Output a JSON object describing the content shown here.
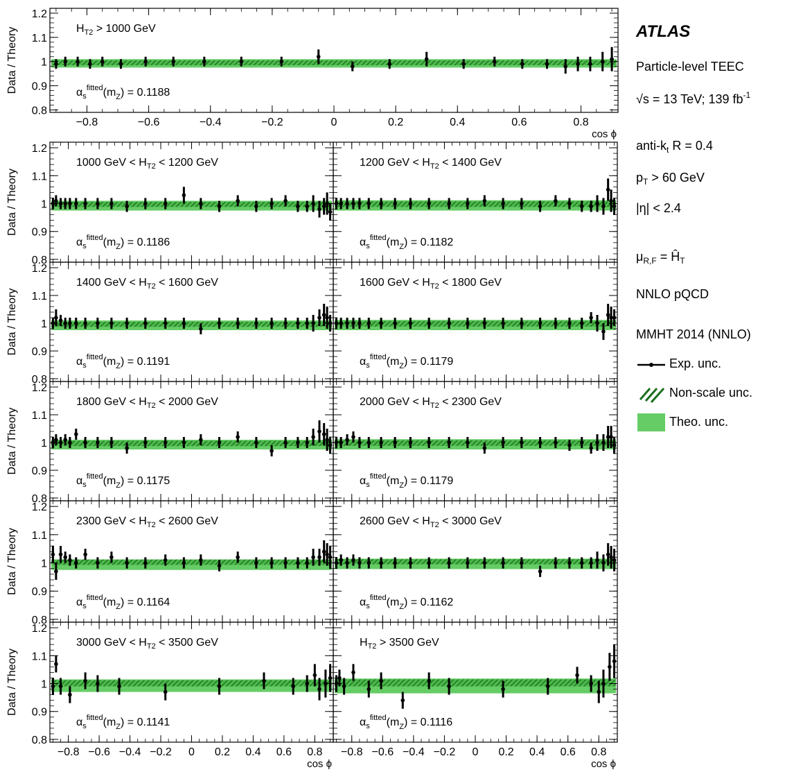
{
  "figure": {
    "experiment": "ATLAS",
    "lines": {
      "level": "Particle-level TEEC",
      "energy_prefix": "√s = 13 TeV; 139 fb",
      "energy_sup": "-1",
      "jet_algo_prefix": "anti-k",
      "jet_algo_sub": "t",
      "jet_algo_suffix": " R = 0.4",
      "pt_prefix": "p",
      "pt_sub": "T",
      "pt_suffix": " > 60 GeV",
      "eta": "|η| < 2.4",
      "scale_prefix": "μ",
      "scale_sub": "R,F",
      "scale_eq": " = ",
      "scale_var": "Ĥ",
      "scale_var_sub": "T",
      "theory": "NNLO pQCD",
      "pdf": "MMHT 2014 (NNLO)"
    },
    "legend": [
      {
        "label": "Exp. unc.",
        "icon": "marker-with-errorbar"
      },
      {
        "label": "Non-scale unc.",
        "icon": "hatched-band"
      },
      {
        "label": "Theo. unc.",
        "icon": "filled-band"
      }
    ],
    "colors": {
      "theo_band": "#66cc66",
      "hatch": "#1a6e1a",
      "markers": "#000000",
      "frame": "#000000"
    }
  },
  "chart_data": [
    {
      "type": "line",
      "panel": "inclusive",
      "label_main": "H",
      "label_sub": "T2",
      "label_rest": " > 1000 GeV",
      "alpha_s": "0.1188",
      "ylabel": "Data / Theory",
      "xlabel": "cos ϕ",
      "xlim": [
        -0.92,
        0.92
      ],
      "ylim": [
        0.79,
        1.22
      ],
      "xticks": [
        -0.8,
        -0.6,
        -0.4,
        -0.2,
        0,
        0.2,
        0.4,
        0.6,
        0.8
      ],
      "yticks": [
        0.8,
        0.9,
        1,
        1.1,
        1.2
      ],
      "x": [
        -0.9,
        -0.87,
        -0.83,
        -0.79,
        -0.75,
        -0.69,
        -0.61,
        -0.52,
        -0.42,
        -0.3,
        -0.17,
        -0.05,
        0.06,
        0.18,
        0.3,
        0.42,
        0.52,
        0.61,
        0.69,
        0.75,
        0.79,
        0.83,
        0.87,
        0.9
      ],
      "y": [
        0.99,
        1.0,
        1.0,
        0.99,
        1.0,
        0.99,
        1.0,
        1.0,
        1.0,
        1.0,
        1.0,
        1.02,
        0.98,
        0.99,
        1.01,
        0.99,
        1.0,
        0.99,
        0.99,
        0.98,
        0.99,
        0.99,
        1.0,
        1.01
      ],
      "err": [
        0.02,
        0.02,
        0.02,
        0.02,
        0.02,
        0.02,
        0.02,
        0.02,
        0.02,
        0.02,
        0.02,
        0.03,
        0.02,
        0.02,
        0.03,
        0.02,
        0.02,
        0.02,
        0.02,
        0.03,
        0.03,
        0.03,
        0.04,
        0.05
      ],
      "theo_band": [
        0.975,
        1.01
      ],
      "nonscale_band": [
        0.985,
        1.005
      ]
    },
    {
      "type": "line",
      "panel": "1000-1200",
      "label_main": "1000 GeV < H",
      "label_sub": "T2",
      "label_rest": " < 1200 GeV",
      "alpha_s": "0.1186",
      "ylabel": "Data / Theory",
      "xlim": [
        -0.92,
        0.92
      ],
      "ylim": [
        0.79,
        1.22
      ],
      "yticks": [
        0.8,
        0.9,
        1,
        1.1,
        1.2
      ],
      "x": [
        -0.9,
        -0.88,
        -0.85,
        -0.82,
        -0.79,
        -0.75,
        -0.69,
        -0.61,
        -0.52,
        -0.42,
        -0.3,
        -0.17,
        -0.05,
        0.06,
        0.18,
        0.3,
        0.42,
        0.52,
        0.61,
        0.69,
        0.75,
        0.79,
        0.83,
        0.86,
        0.88,
        0.9
      ],
      "y": [
        1.0,
        1.01,
        1.0,
        1.0,
        1.0,
        1.0,
        1.0,
        1.0,
        1.0,
        0.99,
        1.0,
        1.0,
        1.03,
        1.0,
        0.99,
        1.01,
        0.99,
        1.0,
        1.01,
        0.99,
        0.99,
        1.0,
        0.98,
        0.99,
        1.0,
        0.97
      ],
      "err": [
        0.02,
        0.02,
        0.02,
        0.02,
        0.02,
        0.02,
        0.02,
        0.02,
        0.02,
        0.02,
        0.02,
        0.02,
        0.03,
        0.02,
        0.02,
        0.02,
        0.02,
        0.02,
        0.02,
        0.02,
        0.02,
        0.03,
        0.03,
        0.03,
        0.04,
        0.03
      ],
      "theo_band": [
        0.975,
        1.01
      ],
      "nonscale_band": [
        0.988,
        1.006
      ]
    },
    {
      "type": "line",
      "panel": "1200-1400",
      "label_main": "1200 GeV < H",
      "label_sub": "T2",
      "label_rest": " < 1400 GeV",
      "alpha_s": "0.1182",
      "xlim": [
        -0.92,
        0.92
      ],
      "ylim": [
        0.79,
        1.22
      ],
      "x": [
        -0.9,
        -0.87,
        -0.83,
        -0.79,
        -0.75,
        -0.69,
        -0.61,
        -0.52,
        -0.42,
        -0.3,
        -0.17,
        -0.05,
        0.06,
        0.18,
        0.3,
        0.42,
        0.52,
        0.61,
        0.69,
        0.75,
        0.79,
        0.83,
        0.86,
        0.88,
        0.9
      ],
      "y": [
        1.0,
        1.0,
        1.0,
        1.0,
        1.0,
        1.0,
        1.0,
        1.0,
        1.0,
        1.0,
        1.0,
        1.0,
        1.01,
        1.0,
        1.0,
        0.99,
        1.01,
        1.0,
        0.99,
        0.99,
        1.0,
        0.99,
        1.05,
        1.01,
        0.99
      ],
      "err": [
        0.02,
        0.02,
        0.02,
        0.02,
        0.02,
        0.02,
        0.02,
        0.02,
        0.02,
        0.02,
        0.02,
        0.02,
        0.02,
        0.02,
        0.02,
        0.02,
        0.02,
        0.02,
        0.02,
        0.02,
        0.03,
        0.03,
        0.04,
        0.04,
        0.03
      ],
      "theo_band": [
        0.975,
        1.012
      ],
      "nonscale_band": [
        0.988,
        1.008
      ]
    },
    {
      "type": "line",
      "panel": "1400-1600",
      "label_main": "1400 GeV < H",
      "label_sub": "T2",
      "label_rest": " < 1600 GeV",
      "alpha_s": "0.1191",
      "ylabel": "Data / Theory",
      "xlim": [
        -0.92,
        0.92
      ],
      "ylim": [
        0.79,
        1.22
      ],
      "yticks": [
        0.8,
        0.9,
        1,
        1.1,
        1.2
      ],
      "x": [
        -0.9,
        -0.88,
        -0.85,
        -0.82,
        -0.79,
        -0.75,
        -0.69,
        -0.61,
        -0.52,
        -0.42,
        -0.3,
        -0.17,
        -0.05,
        0.06,
        0.18,
        0.3,
        0.42,
        0.52,
        0.61,
        0.69,
        0.75,
        0.79,
        0.83,
        0.86,
        0.88,
        0.9
      ],
      "y": [
        1.0,
        1.02,
        1.01,
        1.0,
        1.0,
        1.0,
        1.0,
        1.0,
        1.0,
        1.0,
        1.0,
        1.0,
        1.0,
        0.98,
        1.0,
        1.0,
        1.0,
        1.0,
        1.0,
        1.0,
        1.0,
        1.0,
        1.02,
        1.03,
        1.02,
        1.0
      ],
      "err": [
        0.02,
        0.03,
        0.02,
        0.02,
        0.02,
        0.02,
        0.02,
        0.02,
        0.02,
        0.02,
        0.02,
        0.02,
        0.02,
        0.02,
        0.02,
        0.02,
        0.02,
        0.02,
        0.02,
        0.02,
        0.02,
        0.03,
        0.03,
        0.04,
        0.04,
        0.03
      ],
      "theo_band": [
        0.975,
        1.01
      ],
      "nonscale_band": [
        0.987,
        1.005
      ]
    },
    {
      "type": "line",
      "panel": "1600-1800",
      "label_main": "1600 GeV < H",
      "label_sub": "T2",
      "label_rest": " < 1800 GeV",
      "alpha_s": "0.1179",
      "xlim": [
        -0.92,
        0.92
      ],
      "ylim": [
        0.79,
        1.22
      ],
      "x": [
        -0.9,
        -0.87,
        -0.83,
        -0.79,
        -0.75,
        -0.69,
        -0.61,
        -0.52,
        -0.42,
        -0.3,
        -0.17,
        -0.05,
        0.06,
        0.18,
        0.3,
        0.42,
        0.52,
        0.61,
        0.69,
        0.75,
        0.79,
        0.83,
        0.86,
        0.88,
        0.9
      ],
      "y": [
        1.0,
        1.0,
        1.0,
        1.0,
        1.0,
        1.0,
        1.0,
        1.0,
        1.0,
        1.0,
        1.0,
        1.0,
        1.0,
        1.0,
        1.0,
        1.0,
        1.0,
        1.0,
        1.0,
        1.02,
        1.0,
        0.97,
        1.03,
        1.02,
        1.02
      ],
      "err": [
        0.02,
        0.02,
        0.02,
        0.02,
        0.02,
        0.02,
        0.02,
        0.02,
        0.02,
        0.02,
        0.02,
        0.02,
        0.02,
        0.02,
        0.02,
        0.02,
        0.02,
        0.02,
        0.02,
        0.02,
        0.03,
        0.03,
        0.04,
        0.04,
        0.03
      ],
      "theo_band": [
        0.975,
        1.012
      ],
      "nonscale_band": [
        0.988,
        1.008
      ]
    },
    {
      "type": "line",
      "panel": "1800-2000",
      "label_main": "1800 GeV < H",
      "label_sub": "T2",
      "label_rest": " < 2000 GeV",
      "alpha_s": "0.1175",
      "ylabel": "Data / Theory",
      "xlim": [
        -0.92,
        0.92
      ],
      "ylim": [
        0.79,
        1.22
      ],
      "yticks": [
        0.8,
        0.9,
        1,
        1.1,
        1.2
      ],
      "x": [
        -0.9,
        -0.88,
        -0.85,
        -0.82,
        -0.79,
        -0.75,
        -0.69,
        -0.61,
        -0.52,
        -0.42,
        -0.3,
        -0.17,
        -0.05,
        0.06,
        0.18,
        0.3,
        0.42,
        0.52,
        0.61,
        0.69,
        0.75,
        0.79,
        0.83,
        0.86,
        0.88,
        0.9
      ],
      "y": [
        1.0,
        1.01,
        1.0,
        1.01,
        1.0,
        1.03,
        1.0,
        1.0,
        1.0,
        0.98,
        1.0,
        1.0,
        1.0,
        1.01,
        1.0,
        1.02,
        1.0,
        0.97,
        1.0,
        1.0,
        1.0,
        1.02,
        1.04,
        1.03,
        1.01,
        0.99
      ],
      "err": [
        0.02,
        0.02,
        0.02,
        0.02,
        0.02,
        0.02,
        0.02,
        0.02,
        0.02,
        0.02,
        0.02,
        0.02,
        0.02,
        0.02,
        0.02,
        0.02,
        0.02,
        0.02,
        0.02,
        0.02,
        0.02,
        0.03,
        0.04,
        0.04,
        0.04,
        0.03
      ],
      "theo_band": [
        0.975,
        1.01
      ],
      "nonscale_band": [
        0.987,
        1.006
      ]
    },
    {
      "type": "line",
      "panel": "2000-2300",
      "label_main": "2000 GeV < H",
      "label_sub": "T2",
      "label_rest": " < 2300 GeV",
      "alpha_s": "0.1179",
      "xlim": [
        -0.92,
        0.92
      ],
      "ylim": [
        0.79,
        1.22
      ],
      "x": [
        -0.9,
        -0.87,
        -0.83,
        -0.79,
        -0.75,
        -0.69,
        -0.61,
        -0.52,
        -0.42,
        -0.3,
        -0.17,
        -0.05,
        0.06,
        0.18,
        0.3,
        0.42,
        0.52,
        0.61,
        0.69,
        0.75,
        0.79,
        0.83,
        0.86,
        0.88,
        0.9
      ],
      "y": [
        1.0,
        1.0,
        1.01,
        1.02,
        1.0,
        1.0,
        1.0,
        1.0,
        1.0,
        1.0,
        1.0,
        1.0,
        0.98,
        1.0,
        1.0,
        1.0,
        1.0,
        0.99,
        1.0,
        0.98,
        1.0,
        1.0,
        1.02,
        1.02,
        0.99
      ],
      "err": [
        0.02,
        0.02,
        0.02,
        0.02,
        0.02,
        0.02,
        0.02,
        0.02,
        0.02,
        0.02,
        0.02,
        0.02,
        0.02,
        0.02,
        0.02,
        0.02,
        0.02,
        0.02,
        0.02,
        0.02,
        0.03,
        0.03,
        0.04,
        0.04,
        0.03
      ],
      "theo_band": [
        0.975,
        1.012
      ],
      "nonscale_band": [
        0.988,
        1.008
      ]
    },
    {
      "type": "line",
      "panel": "2300-2600",
      "label_main": "2300 GeV < H",
      "label_sub": "T2",
      "label_rest": " < 2600 GeV",
      "alpha_s": "0.1164",
      "ylabel": "Data / Theory",
      "xlim": [
        -0.92,
        0.92
      ],
      "ylim": [
        0.79,
        1.22
      ],
      "yticks": [
        0.8,
        0.9,
        1,
        1.1,
        1.2
      ],
      "x": [
        -0.9,
        -0.88,
        -0.85,
        -0.82,
        -0.79,
        -0.75,
        -0.69,
        -0.61,
        -0.52,
        -0.42,
        -0.3,
        -0.17,
        -0.05,
        0.06,
        0.18,
        0.3,
        0.42,
        0.52,
        0.61,
        0.69,
        0.75,
        0.79,
        0.83,
        0.86,
        0.88,
        0.9
      ],
      "y": [
        1.03,
        0.97,
        1.03,
        1.02,
        1.01,
        1.0,
        1.03,
        1.0,
        1.02,
        1.0,
        1.0,
        1.01,
        1.0,
        1.01,
        0.99,
        1.02,
        1.0,
        1.0,
        1.0,
        1.0,
        1.0,
        1.02,
        1.02,
        1.04,
        1.03,
        1.02
      ],
      "err": [
        0.03,
        0.03,
        0.03,
        0.02,
        0.02,
        0.02,
        0.02,
        0.02,
        0.02,
        0.02,
        0.02,
        0.02,
        0.02,
        0.02,
        0.02,
        0.02,
        0.02,
        0.02,
        0.02,
        0.02,
        0.02,
        0.03,
        0.03,
        0.04,
        0.04,
        0.04
      ],
      "theo_band": [
        0.975,
        1.012
      ],
      "nonscale_band": [
        0.993,
        1.012
      ]
    },
    {
      "type": "line",
      "panel": "2600-3000",
      "label_main": "2600 GeV < H",
      "label_sub": "T2",
      "label_rest": " < 3000 GeV",
      "alpha_s": "0.1162",
      "xlim": [
        -0.92,
        0.92
      ],
      "ylim": [
        0.79,
        1.22
      ],
      "x": [
        -0.9,
        -0.87,
        -0.83,
        -0.79,
        -0.75,
        -0.69,
        -0.61,
        -0.52,
        -0.42,
        -0.3,
        -0.17,
        -0.05,
        0.06,
        0.18,
        0.3,
        0.42,
        0.52,
        0.61,
        0.69,
        0.75,
        0.79,
        0.83,
        0.86,
        0.88,
        0.9
      ],
      "y": [
        1.0,
        1.01,
        1.0,
        1.01,
        1.0,
        1.0,
        1.0,
        1.0,
        1.0,
        1.0,
        1.0,
        1.0,
        1.0,
        1.0,
        1.0,
        0.97,
        1.0,
        1.0,
        1.0,
        1.0,
        1.01,
        1.0,
        1.03,
        1.02,
        1.01
      ],
      "err": [
        0.02,
        0.02,
        0.02,
        0.02,
        0.02,
        0.02,
        0.02,
        0.02,
        0.02,
        0.02,
        0.02,
        0.02,
        0.02,
        0.02,
        0.02,
        0.02,
        0.02,
        0.02,
        0.02,
        0.02,
        0.03,
        0.03,
        0.04,
        0.04,
        0.04
      ],
      "theo_band": [
        0.978,
        1.015
      ],
      "nonscale_band": [
        0.995,
        1.013
      ]
    },
    {
      "type": "line",
      "panel": "3000-3500",
      "label_main": "3000 GeV < H",
      "label_sub": "T2",
      "label_rest": " < 3500 GeV",
      "alpha_s": "0.1141",
      "ylabel": "Data / Theory",
      "xlabel": "cos ϕ",
      "xlim": [
        -0.92,
        0.92
      ],
      "ylim": [
        0.79,
        1.22
      ],
      "xticks": [
        -0.8,
        -0.6,
        -0.4,
        -0.2,
        0,
        0.2,
        0.4,
        0.6,
        0.8
      ],
      "yticks": [
        0.8,
        0.9,
        1,
        1.1,
        1.2
      ],
      "x": [
        -0.9,
        -0.88,
        -0.85,
        -0.79,
        -0.69,
        -0.61,
        -0.47,
        -0.17,
        0.18,
        0.47,
        0.66,
        0.75,
        0.8,
        0.83,
        0.87,
        0.9
      ],
      "y": [
        0.99,
        1.07,
        0.99,
        0.96,
        1.01,
        1.0,
        0.99,
        0.97,
        0.99,
        1.01,
        0.99,
        1.0,
        1.03,
        0.98,
        1.0,
        1.02
      ],
      "err": [
        0.03,
        0.03,
        0.03,
        0.03,
        0.03,
        0.03,
        0.03,
        0.03,
        0.03,
        0.03,
        0.03,
        0.03,
        0.04,
        0.04,
        0.05,
        0.05
      ],
      "theo_band": [
        0.97,
        1.015
      ],
      "nonscale_band": [
        0.99,
        1.012
      ]
    },
    {
      "type": "line",
      "panel": "3500+",
      "label_main": "H",
      "label_sub": "T2",
      "label_rest": " > 3500 GeV",
      "alpha_s": "0.1116",
      "xlabel": "cos ϕ",
      "xlim": [
        -0.92,
        0.92
      ],
      "ylim": [
        0.79,
        1.22
      ],
      "xticks": [
        -0.8,
        -0.6,
        -0.4,
        -0.2,
        0,
        0.2,
        0.4,
        0.6,
        0.8
      ],
      "x": [
        -0.9,
        -0.88,
        -0.85,
        -0.79,
        -0.69,
        -0.61,
        -0.47,
        -0.3,
        -0.17,
        0.18,
        0.47,
        0.66,
        0.75,
        0.8,
        0.83,
        0.87,
        0.9
      ],
      "y": [
        1.0,
        1.02,
        0.99,
        1.04,
        0.98,
        1.01,
        0.94,
        1.01,
        0.99,
        0.98,
        0.99,
        1.03,
        1.0,
        0.97,
        1.0,
        1.06,
        1.08
      ],
      "err": [
        0.03,
        0.03,
        0.03,
        0.03,
        0.03,
        0.03,
        0.03,
        0.03,
        0.03,
        0.03,
        0.03,
        0.03,
        0.03,
        0.04,
        0.05,
        0.05,
        0.06
      ],
      "theo_band": [
        0.965,
        1.018
      ],
      "nonscale_band": [
        0.99,
        1.015
      ]
    }
  ]
}
